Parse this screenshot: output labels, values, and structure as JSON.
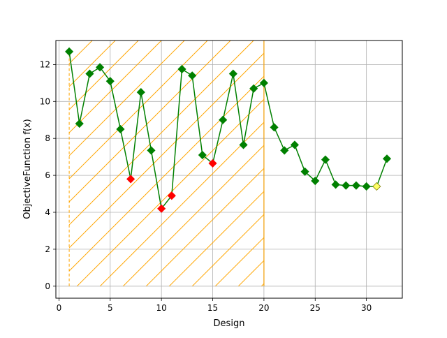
{
  "chart_data": {
    "type": "line",
    "title": "",
    "xlabel": "Design",
    "ylabel": "ObjectiveFunction f(x)",
    "xlim": [
      -0.3,
      33.5
    ],
    "ylim": [
      -0.65,
      13.3
    ],
    "x_ticks": [
      0,
      5,
      10,
      15,
      20,
      25,
      30
    ],
    "y_ticks": [
      0,
      2,
      4,
      6,
      8,
      10,
      12
    ],
    "grid": true,
    "legend": "none",
    "colors": {
      "line": "#008000",
      "marker_normal": "#008000",
      "marker_highlight": "#ff0000",
      "marker_best": "#ffff66",
      "region": "#ffa500"
    },
    "region": {
      "x_start": 1,
      "x_end": 20,
      "y_start": 0,
      "y_end": 13.3,
      "pattern": "diagonal-hatch"
    },
    "series": [
      {
        "x": [
          1,
          2,
          3,
          4,
          5,
          6,
          7,
          8,
          9,
          10,
          11,
          12,
          13,
          14,
          15,
          16,
          17,
          18,
          19,
          20,
          21,
          22,
          23,
          24,
          25,
          26,
          27,
          28,
          29,
          30,
          31,
          32
        ],
        "values": [
          12.7,
          8.8,
          11.5,
          11.85,
          11.1,
          8.5,
          5.8,
          10.5,
          7.35,
          4.2,
          4.9,
          11.75,
          11.4,
          7.1,
          6.65,
          9.0,
          11.5,
          7.65,
          10.7,
          11.0,
          8.6,
          7.35,
          7.65,
          6.2,
          5.7,
          6.85,
          5.5,
          5.45,
          5.45,
          5.4,
          5.4,
          6.9
        ]
      }
    ],
    "highlighted_x": [
      7,
      10,
      11,
      15
    ],
    "best_x": 31
  }
}
